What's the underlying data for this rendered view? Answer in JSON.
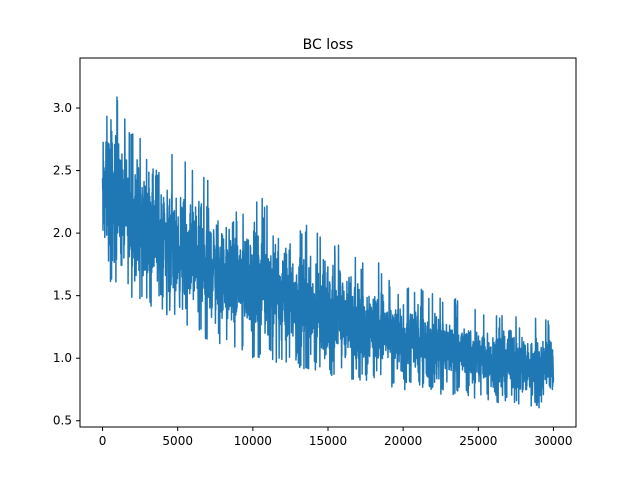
{
  "chart_data": {
    "type": "line",
    "title": "BC loss",
    "xlabel": "",
    "ylabel": "",
    "xlim": [
      -1500,
      31500
    ],
    "ylim": [
      0.45,
      3.4
    ],
    "x_ticks": [
      0,
      5000,
      10000,
      15000,
      20000,
      25000,
      30000
    ],
    "x_tick_labels": [
      "0",
      "5000",
      "10000",
      "15000",
      "20000",
      "25000",
      "30000"
    ],
    "y_ticks": [
      0.5,
      1.0,
      1.5,
      2.0,
      2.5,
      3.0
    ],
    "y_tick_labels": [
      "0.5",
      "1.0",
      "1.5",
      "2.0",
      "2.5",
      "3.0"
    ],
    "grid": false,
    "legend": "none",
    "series": [
      {
        "color": "#1f77b4",
        "x_range": [
          0,
          30000
        ],
        "description_points": [
          {
            "x": 0,
            "mid": 2.15,
            "low": 1.55,
            "high": 3.05
          },
          {
            "x": 300,
            "mid": 2.2,
            "low": 1.6,
            "high": 3.27
          },
          {
            "x": 1000,
            "mid": 2.05,
            "low": 1.5,
            "high": 3.1
          },
          {
            "x": 2000,
            "mid": 1.95,
            "low": 1.45,
            "high": 2.8
          },
          {
            "x": 3500,
            "mid": 1.85,
            "low": 1.35,
            "high": 2.9
          },
          {
            "x": 5000,
            "mid": 1.75,
            "low": 1.25,
            "high": 2.55
          },
          {
            "x": 6000,
            "mid": 1.7,
            "low": 1.15,
            "high": 2.6
          },
          {
            "x": 8000,
            "mid": 1.6,
            "low": 1.1,
            "high": 2.35
          },
          {
            "x": 10000,
            "mid": 1.5,
            "low": 1.0,
            "high": 2.35
          },
          {
            "x": 12000,
            "mid": 1.42,
            "low": 0.95,
            "high": 2.2
          },
          {
            "x": 15000,
            "mid": 1.32,
            "low": 0.85,
            "high": 1.95
          },
          {
            "x": 18000,
            "mid": 1.22,
            "low": 0.8,
            "high": 1.8
          },
          {
            "x": 20000,
            "mid": 1.15,
            "low": 0.75,
            "high": 1.6
          },
          {
            "x": 23000,
            "mid": 1.05,
            "low": 0.7,
            "high": 1.5
          },
          {
            "x": 25000,
            "mid": 1.0,
            "low": 0.67,
            "high": 1.4
          },
          {
            "x": 27000,
            "mid": 0.97,
            "low": 0.63,
            "high": 1.35
          },
          {
            "x": 29000,
            "mid": 0.93,
            "low": 0.6,
            "high": 1.32
          },
          {
            "x": 30000,
            "mid": 0.9,
            "low": 0.62,
            "high": 1.3
          }
        ]
      }
    ]
  }
}
